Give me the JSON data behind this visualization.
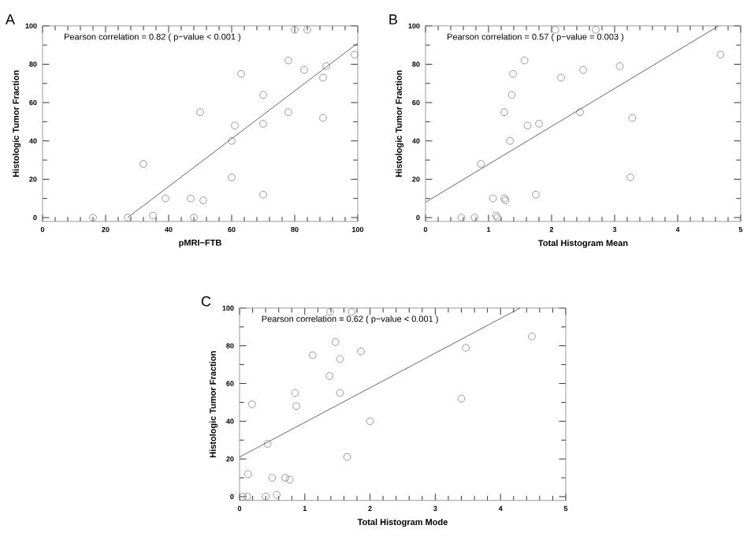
{
  "chart_data": [
    {
      "type": "scatter",
      "xlabel": "pMRI−FTB",
      "ylabel": "Histologic Tumor Fraction",
      "annotations": [
        "A",
        "Pearson correlation  =  0.82  ( p−value < 0.001 )"
      ],
      "xlim": [
        0,
        100
      ],
      "ylim": [
        -2,
        100
      ],
      "xticks": [
        0,
        20,
        40,
        60,
        80,
        100
      ],
      "yticks": [
        0,
        20,
        40,
        60,
        80,
        100
      ],
      "grid": false,
      "series": [
        {
          "marker": "circle",
          "color": "#808080",
          "x": [
            16,
            27,
            32,
            35,
            39,
            47,
            48,
            50,
            51,
            60,
            60,
            61,
            63,
            70,
            70,
            70,
            78,
            78,
            80,
            83,
            84,
            89,
            89,
            90,
            99
          ],
          "values": [
            0,
            0,
            28,
            1,
            10,
            10,
            0,
            55,
            9,
            21,
            40,
            48,
            75,
            12,
            49,
            64,
            82,
            55,
            98,
            77,
            98,
            73,
            52,
            79,
            85
          ]
        },
        {
          "type": "line",
          "marker": "none",
          "color": "#404040",
          "x": [
            27,
            100
          ],
          "values": [
            0,
            91
          ]
        }
      ]
    },
    {
      "type": "scatter",
      "xlabel": "Total Histogram Mean",
      "ylabel": "Histologic Tumor Fraction",
      "annotations": [
        "B",
        "Pearson correlation  =  0.57  ( p−value  =  0.003 )"
      ],
      "xlim": [
        0,
        5
      ],
      "ylim": [
        -2,
        100
      ],
      "xticks": [
        0,
        1,
        2,
        3,
        4,
        5
      ],
      "yticks": [
        0,
        20,
        40,
        60,
        80,
        100
      ],
      "grid": false,
      "series": [
        {
          "marker": "circle",
          "color": "#808080",
          "x": [
            0.57,
            0.78,
            0.88,
            1.07,
            1.12,
            1.14,
            1.25,
            1.25,
            1.27,
            1.34,
            1.37,
            1.39,
            1.57,
            1.62,
            1.75,
            1.8,
            2.06,
            2.15,
            2.45,
            2.5,
            2.7,
            3.08,
            3.25,
            3.28,
            4.68
          ],
          "values": [
            0,
            0,
            28,
            10,
            1,
            0,
            55,
            10,
            9,
            40,
            64,
            75,
            82,
            48,
            12,
            49,
            98,
            73,
            55,
            77,
            98,
            79,
            21,
            52,
            85
          ]
        },
        {
          "type": "line",
          "marker": "none",
          "color": "#404040",
          "x": [
            0,
            4.65
          ],
          "values": [
            8,
            100
          ]
        }
      ]
    },
    {
      "type": "scatter",
      "xlabel": "Total Histogram Mode",
      "ylabel": "Histologic Tumor Fraction",
      "annotations": [
        "C",
        "Pearson correlation  =  0.62  ( p−value < 0.001 )"
      ],
      "xlim": [
        0,
        5
      ],
      "ylim": [
        -2,
        100
      ],
      "xticks": [
        0,
        1,
        2,
        3,
        4,
        5
      ],
      "yticks": [
        0,
        20,
        40,
        60,
        80,
        100
      ],
      "grid": false,
      "series": [
        {
          "marker": "circle",
          "color": "#808080",
          "x": [
            0.05,
            0.12,
            0.13,
            0.19,
            0.4,
            0.43,
            0.5,
            0.57,
            0.7,
            0.77,
            0.85,
            0.87,
            1.12,
            1.38,
            1.39,
            1.47,
            1.54,
            1.54,
            1.65,
            1.72,
            1.86,
            2.0,
            3.4,
            3.47,
            4.48
          ],
          "values": [
            0,
            0,
            12,
            49,
            0,
            28,
            10,
            1,
            10,
            9,
            55,
            48,
            75,
            64,
            98,
            82,
            73,
            55,
            21,
            98,
            77,
            40,
            52,
            79,
            85
          ]
        },
        {
          "type": "line",
          "marker": "none",
          "color": "#404040",
          "x": [
            0,
            4.3
          ],
          "values": [
            21,
            100
          ]
        }
      ]
    }
  ]
}
